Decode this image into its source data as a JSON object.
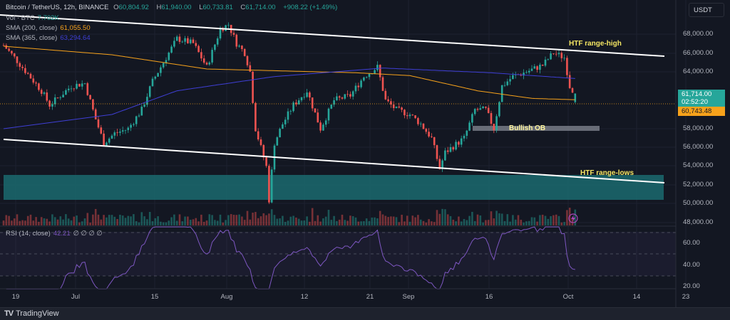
{
  "header": {
    "symbol": "Bitcoin / TetherUS, 12h, BINANCE",
    "o_label": "O",
    "o": "60,804.92",
    "h_label": "H",
    "h": "61,940.00",
    "l_label": "L",
    "l": "60,733.81",
    "c_label": "C",
    "c": "61,714.00",
    "change": "+908.22 (+1.49%)",
    "vol_label": "Vol · BTC",
    "vol": "7.702K",
    "sma200_label": "SMA (200, close)",
    "sma200": "61,055.50",
    "sma365_label": "SMA (365, close)",
    "sma365": "63,294.64",
    "rsi_label": "RSI (14, close)",
    "rsi": "42.21",
    "rsi_extra": "∅ ∅ ∅ ∅"
  },
  "currency": "USDT",
  "price_ticks": [
    "68,000.00",
    "66,000.00",
    "64,000.00",
    "58,000.00",
    "56,000.00",
    "54,000.00",
    "52,000.00",
    "50,000.00",
    "48,000.00"
  ],
  "rsi_ticks": [
    "60.00",
    "40.00",
    "20.00"
  ],
  "time_ticks": [
    "19",
    "Jul",
    "15",
    "Aug",
    "12",
    "21",
    "Sep",
    "16",
    "Oct",
    "14",
    "23"
  ],
  "last_price": "61,714.00",
  "countdown": "02:52:20",
  "sma_price_tag": "60,743.48",
  "annotations": {
    "range_high": "HTF range-high",
    "bullish_ob": "Bullish OB",
    "range_lows": "HTF range-lows"
  },
  "brand": "TradingView",
  "colors": {
    "up": "#26a69a",
    "down": "#ef5350",
    "sma200": "#f7a21b",
    "sma365": "#3f3fd6",
    "rsi": "#7e57c2",
    "zone": "#1b6a6f"
  },
  "chart_data": {
    "type": "candlestick",
    "timeframe": "12h",
    "price_path_bar_price": [
      [
        0,
        66800
      ],
      [
        4,
        65500
      ],
      [
        14,
        62000
      ],
      [
        17,
        60500
      ],
      [
        25,
        62500
      ],
      [
        30,
        62800
      ],
      [
        34,
        59000
      ],
      [
        37,
        56500
      ],
      [
        41,
        57500
      ],
      [
        46,
        58000
      ],
      [
        51,
        60000
      ],
      [
        55,
        63000
      ],
      [
        58,
        64500
      ],
      [
        64,
        67500
      ],
      [
        70,
        67000
      ],
      [
        75,
        64500
      ],
      [
        80,
        68500
      ],
      [
        83,
        69000
      ],
      [
        86,
        67000
      ],
      [
        89,
        66000
      ],
      [
        91,
        64000
      ],
      [
        93,
        58000
      ],
      [
        97,
        54000
      ],
      [
        98,
        50500
      ],
      [
        100,
        56500
      ],
      [
        103,
        58500
      ],
      [
        107,
        60500
      ],
      [
        112,
        62000
      ],
      [
        117,
        58000
      ],
      [
        122,
        61000
      ],
      [
        128,
        61500
      ],
      [
        133,
        63500
      ],
      [
        138,
        64500
      ],
      [
        141,
        61000
      ],
      [
        145,
        60000
      ],
      [
        150,
        59500
      ],
      [
        154,
        58500
      ],
      [
        158,
        57000
      ],
      [
        161,
        53800
      ],
      [
        163,
        55500
      ],
      [
        170,
        57000
      ],
      [
        174,
        60000
      ],
      [
        178,
        60000
      ],
      [
        181,
        58000
      ],
      [
        184,
        62500
      ],
      [
        188,
        63500
      ],
      [
        193,
        64000
      ],
      [
        199,
        64700
      ],
      [
        203,
        66000
      ],
      [
        207,
        65500
      ],
      [
        209,
        62500
      ],
      [
        211,
        61714
      ]
    ],
    "sma200_path": [
      [
        0,
        66700
      ],
      [
        40,
        65800
      ],
      [
        75,
        64300
      ],
      [
        130,
        63900
      ],
      [
        150,
        63600
      ],
      [
        175,
        62000
      ],
      [
        195,
        61200
      ],
      [
        211,
        61055
      ]
    ],
    "sma365_path": [
      [
        0,
        58000
      ],
      [
        40,
        59500
      ],
      [
        64,
        62000
      ],
      [
        100,
        63500
      ],
      [
        140,
        64400
      ],
      [
        180,
        63900
      ],
      [
        211,
        63295
      ]
    ],
    "price_range": [
      47000,
      70000
    ],
    "rsi_range": [
      15,
      75
    ]
  }
}
